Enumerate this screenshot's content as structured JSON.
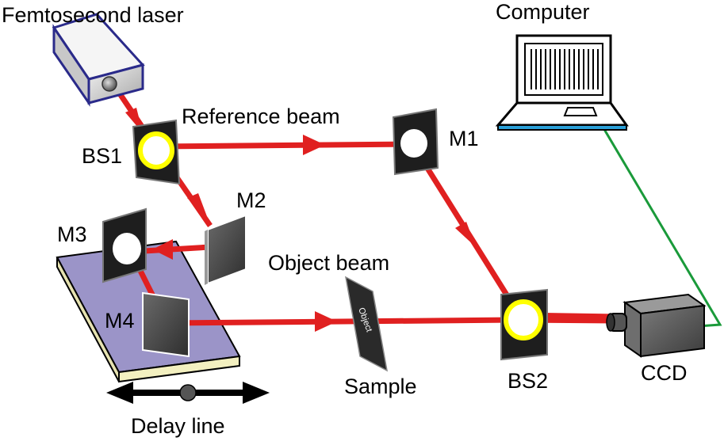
{
  "labels": {
    "laser": "Femtosecond laser",
    "computer": "Computer",
    "reference_beam": "Reference beam",
    "object_beam": "Object beam",
    "bs1": "BS1",
    "bs2": "BS2",
    "m1": "M1",
    "m2": "M2",
    "m3": "M3",
    "m4": "M4",
    "sample": "Sample",
    "sample_plate_text": "Object",
    "ccd": "CCD",
    "delay_line": "Delay line"
  },
  "colors": {
    "beam": "#e02020",
    "cable": "#1a9a3a",
    "stage_top": "#9b94c8",
    "stage_side": "#f3f0c0",
    "laser_outline": "#2a2a8a",
    "laser_body": "#d9d9d9",
    "computer_base": "#2aa0d8",
    "splitter_ring": "#ffff00",
    "mirror_dark": "#3a3a3a",
    "ccd_body": "#555555"
  }
}
